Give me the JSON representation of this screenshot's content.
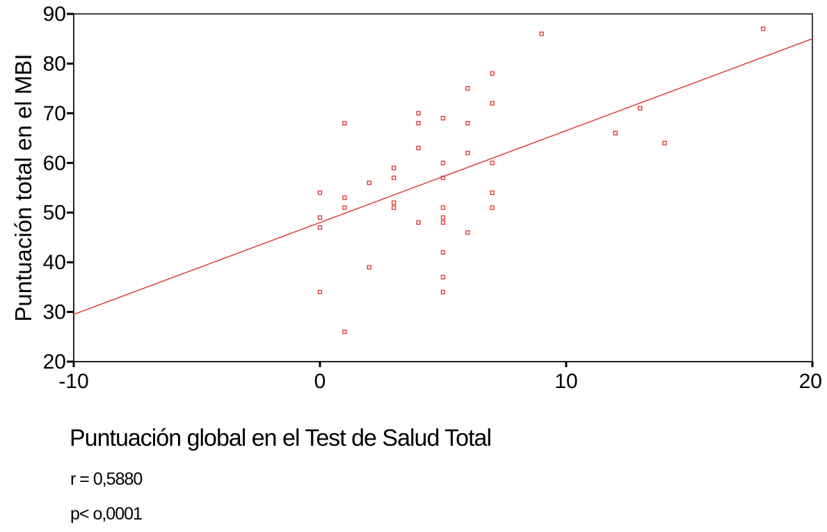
{
  "chart_data": {
    "type": "scatter",
    "title": "",
    "xlabel": "Puntuación global en el Test de Salud Total",
    "ylabel": "Puntuación total en el MBI",
    "xlim": [
      -10,
      20
    ],
    "ylim": [
      20,
      90
    ],
    "xticks": [
      "-10",
      "0",
      "10",
      "20"
    ],
    "yticks": [
      "20",
      "30",
      "40",
      "50",
      "60",
      "70",
      "80",
      "90"
    ],
    "grid": false,
    "legend": "none",
    "marker_color": "#e03030",
    "line_color": "#e03030",
    "fit_line": {
      "intercept": 48.0,
      "slope": 1.85
    },
    "points": [
      {
        "x": 0,
        "y": 54
      },
      {
        "x": 0,
        "y": 49
      },
      {
        "x": 0,
        "y": 47
      },
      {
        "x": 0,
        "y": 34
      },
      {
        "x": 1,
        "y": 68
      },
      {
        "x": 1,
        "y": 53
      },
      {
        "x": 1,
        "y": 51
      },
      {
        "x": 1,
        "y": 26
      },
      {
        "x": 2,
        "y": 56
      },
      {
        "x": 2,
        "y": 39
      },
      {
        "x": 3,
        "y": 59
      },
      {
        "x": 3,
        "y": 57
      },
      {
        "x": 3,
        "y": 52
      },
      {
        "x": 3,
        "y": 51
      },
      {
        "x": 4,
        "y": 70
      },
      {
        "x": 4,
        "y": 68
      },
      {
        "x": 4,
        "y": 63
      },
      {
        "x": 4,
        "y": 48
      },
      {
        "x": 5,
        "y": 69
      },
      {
        "x": 5,
        "y": 60
      },
      {
        "x": 5,
        "y": 57
      },
      {
        "x": 5,
        "y": 51
      },
      {
        "x": 5,
        "y": 49
      },
      {
        "x": 5,
        "y": 48
      },
      {
        "x": 5,
        "y": 42
      },
      {
        "x": 5,
        "y": 37
      },
      {
        "x": 5,
        "y": 34
      },
      {
        "x": 6,
        "y": 75
      },
      {
        "x": 6,
        "y": 68
      },
      {
        "x": 6,
        "y": 62
      },
      {
        "x": 6,
        "y": 46
      },
      {
        "x": 7,
        "y": 78
      },
      {
        "x": 7,
        "y": 72
      },
      {
        "x": 7,
        "y": 60
      },
      {
        "x": 7,
        "y": 54
      },
      {
        "x": 7,
        "y": 51
      },
      {
        "x": 9,
        "y": 86
      },
      {
        "x": 12,
        "y": 66
      },
      {
        "x": 13,
        "y": 71
      },
      {
        "x": 14,
        "y": 64
      },
      {
        "x": 18,
        "y": 87
      }
    ],
    "annotations": [
      "r = 0,5880",
      "p< o,0001"
    ]
  },
  "stats": {
    "r": "r = 0,5880",
    "p": "p< o,0001"
  }
}
